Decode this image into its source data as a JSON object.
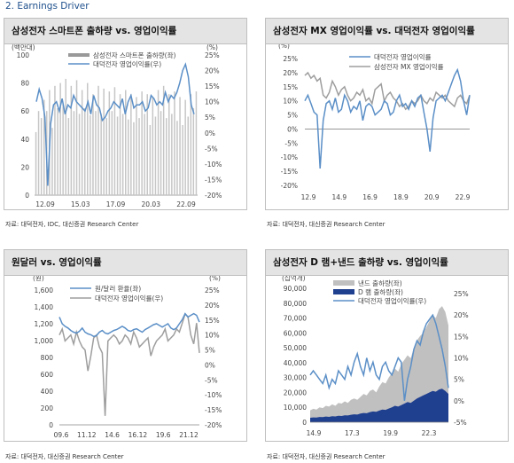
{
  "section_title": "2.   Earnings Driver",
  "panels": [
    {
      "title": "삼성전자 스마트폰 출하량 vs. 영업이익률",
      "source": "자료: 대덕전자, IDC, 대신증권 Research Center",
      "left_unit": "(백만대)",
      "right_unit": "(%)",
      "legend": [
        "삼성전자 스마트폰 출하량(좌)",
        "대덕전자 영업이익률(우)"
      ],
      "left_ticks": [
        "0",
        "20",
        "40",
        "60",
        "80",
        "100"
      ],
      "right_ticks": [
        "-20%",
        "-15%",
        "-10%",
        "-5%",
        "0%",
        "5%",
        "10%",
        "15%",
        "20%",
        "25%"
      ],
      "x_ticks": [
        "12.09",
        "15.03",
        "17.09",
        "20.03",
        "22.09"
      ]
    },
    {
      "title": "삼성전자 MX 영업이익률 vs. 대덕전자 영업이익률",
      "source": "자료: 대덕전자, 대신증권 Research Center",
      "left_unit": "(%)",
      "legend": [
        "대덕전자 영업이익률",
        "삼성전자 MX 영업이익률"
      ],
      "left_ticks": [
        "-20%",
        "-15%",
        "-10%",
        "-5%",
        "0%",
        "5%",
        "10%",
        "15%",
        "20%",
        "25%"
      ],
      "x_ticks": [
        "12.9",
        "14.9",
        "16.9",
        "18.9",
        "20.9",
        "22.9"
      ]
    },
    {
      "title": "원달러 vs. 영업이익률",
      "source": "자료: 대덕전자, 대신증권 Research Center",
      "left_unit": "(원)",
      "right_unit": "(%)",
      "legend": [
        "원/달러 환율(좌)",
        "대덕전자 영업이익률(우)"
      ],
      "left_ticks": [
        "0",
        "200",
        "400",
        "600",
        "800",
        "1,000",
        "1,200",
        "1,400",
        "1,600"
      ],
      "right_ticks": [
        "-20%",
        "-15%",
        "-10%",
        "-5%",
        "0%",
        "5%",
        "10%",
        "15%",
        "20%",
        "25%"
      ],
      "x_ticks": [
        "09.6",
        "11.12",
        "14.6",
        "16.12",
        "19.6",
        "21.12"
      ]
    },
    {
      "title": "삼성전자 D 램+낸드 출하량 vs. 영업이익률",
      "source": "자료: 대덕전자, 대신증권 Research Center",
      "left_unit": "(십억개)",
      "legend": [
        "낸드 출하량(좌)",
        "D 램 출하량(좌)",
        "대덕전자 영업이익률(우)"
      ],
      "left_ticks": [
        "0",
        "10,000",
        "20,000",
        "30,000",
        "40,000",
        "50,000",
        "60,000",
        "70,000",
        "80,000",
        "90,000"
      ],
      "right_ticks": [
        "-5%",
        "0%",
        "5%",
        "10%",
        "15%",
        "20%",
        "25%"
      ],
      "x_ticks": [
        "14.9",
        "17.3",
        "19.9",
        "22.3"
      ]
    }
  ],
  "colors": {
    "line": "#5b8fc7",
    "bar": "#c6c6c6",
    "mx": "#9e9e9e",
    "krw": "#5b8fc7",
    "nand": "#c0c0c0",
    "dram": "#1f3f8f"
  },
  "chart_data": [
    {
      "type": "bar",
      "title": "삼성전자 스마트폰 출하량 vs. 영업이익률",
      "ylim_left": [
        0,
        100
      ],
      "ylim_right": [
        -20,
        25
      ],
      "series": [
        {
          "name": "삼성전자 스마트폰 출하량(좌)",
          "type": "bar",
          "axis": "left",
          "values": [
            45,
            60,
            55,
            68,
            60,
            75,
            48,
            78,
            62,
            80,
            65,
            83,
            55,
            78,
            60,
            82,
            58,
            75,
            62,
            80,
            57,
            72,
            60,
            78,
            58,
            76,
            55,
            74,
            60,
            77,
            56,
            72,
            58,
            75,
            54,
            72,
            52,
            70,
            55,
            74,
            58,
            72,
            50,
            70,
            56,
            75,
            60,
            78,
            55,
            72,
            58,
            74,
            53,
            70,
            50,
            68,
            56,
            72,
            62,
            74
          ]
        },
        {
          "name": "대덕전자 영업이익률(우)",
          "type": "line",
          "axis": "right",
          "values": [
            10,
            14,
            11,
            5,
            -17,
            3,
            9,
            10,
            7,
            11,
            6,
            9,
            8,
            12,
            10,
            9,
            8,
            7,
            10,
            6,
            12,
            9,
            8,
            4,
            5,
            7,
            8,
            10,
            9,
            8,
            11,
            6,
            10,
            12,
            8,
            9,
            9,
            10,
            7,
            8,
            12,
            11,
            9,
            10,
            9,
            13,
            10,
            12,
            11,
            13,
            16,
            20,
            22,
            18,
            9,
            6
          ]
        }
      ]
    },
    {
      "type": "line",
      "title": "삼성전자 MX 영업이익률 vs. 대덕전자 영업이익률",
      "ylim": [
        -20,
        25
      ],
      "series": [
        {
          "name": "대덕전자 영업이익률",
          "values": [
            10,
            12,
            9,
            6,
            5,
            -14,
            3,
            9,
            10,
            7,
            11,
            6,
            7,
            12,
            10,
            6,
            8,
            7,
            10,
            3,
            8,
            9,
            8,
            5,
            6,
            7,
            10,
            9,
            5,
            6,
            10,
            12,
            8,
            9,
            7,
            10,
            8,
            11,
            12,
            6,
            0,
            -8,
            4,
            10,
            11,
            12,
            10,
            13,
            16,
            19,
            21,
            17,
            10,
            5,
            12
          ]
        },
        {
          "name": "삼성전자 MX 영업이익률",
          "values": [
            19,
            20,
            18,
            19,
            17,
            18,
            12,
            11,
            13,
            17,
            15,
            12,
            14,
            15,
            12,
            10,
            11,
            13,
            12,
            14,
            10,
            11,
            9,
            14,
            15,
            16,
            10,
            12,
            13,
            11,
            10,
            8,
            9,
            7,
            8,
            10,
            9,
            10,
            12,
            10,
            9,
            11,
            10,
            13,
            12,
            11,
            12,
            10,
            9,
            8,
            11,
            12,
            10,
            9,
            12
          ]
        }
      ]
    },
    {
      "type": "line",
      "title": "원달러 vs. 영업이익률",
      "ylim_left": [
        0,
        1600
      ],
      "ylim_right": [
        -20,
        25
      ],
      "series": [
        {
          "name": "원/달러 환율(좌)",
          "axis": "left",
          "values": [
            1280,
            1200,
            1170,
            1150,
            1120,
            1100,
            1090,
            1110,
            1150,
            1100,
            1080,
            1070,
            1050,
            1060,
            1100,
            1120,
            1090,
            1080,
            1100,
            1120,
            1130,
            1150,
            1170,
            1150,
            1120,
            1110,
            1130,
            1140,
            1120,
            1100,
            1130,
            1150,
            1170,
            1190,
            1200,
            1180,
            1160,
            1180,
            1200,
            1150,
            1130,
            1150,
            1200,
            1250,
            1320,
            1280,
            1300,
            1320,
            1300,
            1220
          ]
        },
        {
          "name": "대덕전자 영업이익률(우)",
          "axis": "right",
          "values": [
            10,
            12,
            8,
            9,
            10,
            7,
            11,
            8,
            6,
            5,
            -2,
            3,
            9,
            10,
            6,
            4,
            -17,
            8,
            9,
            10,
            9,
            7,
            8,
            10,
            9,
            7,
            11,
            9,
            6,
            7,
            8,
            9,
            3,
            6,
            8,
            9,
            10,
            12,
            8,
            9,
            10,
            12,
            11,
            14,
            17,
            16,
            10,
            7,
            14,
            4
          ]
        }
      ]
    },
    {
      "type": "area",
      "title": "삼성전자 D 램+낸드 출하량 vs. 영업이익률",
      "ylim_left": [
        0,
        90000
      ],
      "ylim_right": [
        -5,
        25
      ],
      "series": [
        {
          "name": "낸드 출하량(좌)",
          "axis": "left",
          "values": [
            8000,
            9000,
            8500,
            10000,
            9500,
            11000,
            10500,
            12000,
            11000,
            13000,
            12500,
            14000,
            13000,
            15000,
            16000,
            15000,
            17000,
            19000,
            18000,
            21000,
            22000,
            20000,
            24000,
            27000,
            26000,
            30000,
            33000,
            36000,
            34000,
            39000,
            42000,
            45000,
            43000,
            50000,
            55000,
            58000,
            60000,
            64000,
            68000,
            72000,
            70000,
            76000,
            78000,
            74000,
            65000
          ]
        },
        {
          "name": "D 램 출하량(좌)",
          "axis": "left",
          "values": [
            3000,
            3200,
            3100,
            3500,
            3400,
            3800,
            3600,
            4000,
            3900,
            4300,
            4200,
            4600,
            4500,
            5000,
            5300,
            5100,
            5800,
            6200,
            6000,
            6800,
            7200,
            7000,
            7800,
            8500,
            8300,
            9200,
            10000,
            11000,
            10500,
            11500,
            12500,
            13500,
            13000,
            14500,
            16000,
            17000,
            18000,
            19000,
            20000,
            21000,
            20500,
            22000,
            22500,
            21000,
            19000
          ]
        },
        {
          "name": "대덕전자 영업이익률(우)",
          "axis": "right",
          "values": [
            6,
            7,
            6,
            5,
            4,
            6,
            3,
            5,
            4,
            7,
            6,
            5,
            8,
            6,
            9,
            11,
            8,
            6,
            10,
            7,
            9,
            6,
            5,
            8,
            9,
            7,
            6,
            8,
            10,
            9,
            0,
            5,
            8,
            12,
            14,
            13,
            16,
            18,
            19,
            20,
            18,
            15,
            12,
            8,
            3
          ]
        }
      ]
    }
  ]
}
